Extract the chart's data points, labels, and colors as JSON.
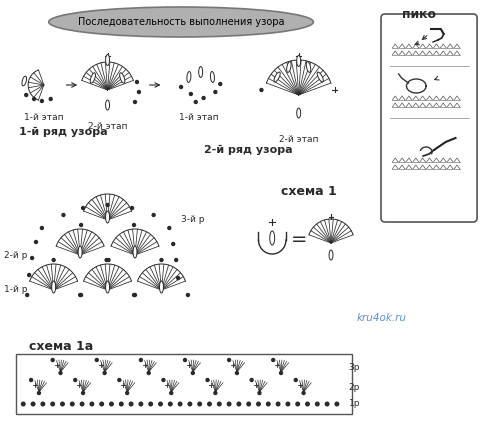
{
  "bg_color": "#ffffff",
  "title": "Последовательность выполнения узора",
  "piko_label": "пико",
  "schema1_label": "схема 1",
  "schema1a_label": "схема 1а",
  "row1_label": "1-й ряд узора",
  "row2_label": "2-й ряд узора",
  "step1_label": "1-й этап",
  "step2_label": "2-й этап",
  "step1b_label": "1-й этап",
  "step2b_label": "2-й этап",
  "row1p_label": "1-й р",
  "row2p_label": "2-й р",
  "row3p_label": "3-й р",
  "row1ps_label": "1р",
  "row2ps_label": "2р",
  "row3ps_label": "3р",
  "watermark": "kru4ok.ru",
  "line_color": "#2a2a2a",
  "font_size_small": 6.5,
  "font_size_medium": 7.5,
  "font_size_large": 9,
  "font_size_bold": 8
}
